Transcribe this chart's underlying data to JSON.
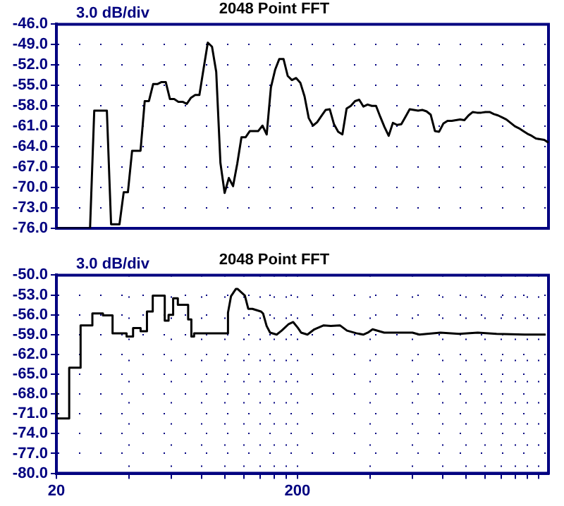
{
  "chart_data": [
    {
      "type": "line",
      "title": "2048 Point FFT",
      "annotations": [
        "3.0 dB/div"
      ],
      "grid": "y",
      "marker": "none",
      "tick_labels": "y",
      "categories": [
        null,
        null,
        null,
        null,
        null,
        null,
        null,
        null,
        null,
        null,
        null,
        null,
        null,
        null,
        null,
        null,
        null,
        null,
        null,
        null,
        null,
        null,
        null,
        null,
        null,
        null,
        null,
        null,
        null,
        null,
        null,
        null,
        null,
        null,
        null,
        null,
        null,
        null,
        null,
        null,
        null,
        null,
        null,
        null,
        null,
        null,
        null,
        null,
        null,
        null,
        null,
        null,
        null,
        null,
        null,
        null,
        null,
        null,
        null,
        null,
        null,
        null,
        null,
        null,
        null,
        null,
        null,
        null,
        null,
        null,
        null,
        null,
        null,
        null,
        null,
        null,
        null,
        null,
        null,
        null,
        null,
        null,
        null,
        null,
        null,
        null,
        null,
        null,
        null,
        null,
        null,
        null,
        null,
        null,
        null,
        null,
        null,
        null,
        null,
        null,
        null,
        null,
        null,
        null,
        null,
        null,
        null,
        null,
        null,
        null,
        null,
        null,
        null,
        null,
        null,
        null,
        null,
        null
      ],
      "ylim": [
        -76,
        -46
      ],
      "yticks": [
        {
          "value": -76,
          "label": "-76.0"
        },
        {
          "value": -73,
          "label": "-73.0"
        },
        {
          "value": -70,
          "label": "-70.0"
        },
        {
          "value": -67,
          "label": "-67.0"
        },
        {
          "value": -64,
          "label": "-64.0"
        },
        {
          "value": -61,
          "label": "-61.0"
        },
        {
          "value": -58,
          "label": "-58.0"
        },
        {
          "value": -55,
          "label": "-55.0"
        },
        {
          "value": -52,
          "label": "-52.0"
        },
        {
          "value": -49,
          "label": "-49.0"
        },
        {
          "value": -46,
          "label": "-46.0"
        }
      ],
      "series": [
        {
          "color": "#000000",
          "values": [
            -76,
            -76,
            -76,
            -76,
            -76,
            -76,
            -76,
            -76,
            -76,
            -58.7,
            -58.7,
            -58.7,
            -58.7,
            -75.4,
            -75.4,
            -75.4,
            -70.7,
            -70.7,
            -64.6,
            -64.6,
            -64.6,
            -57.3,
            -57.3,
            -54.8,
            -54.8,
            -54.5,
            -54.5,
            -57,
            -57,
            -57.4,
            -57.4,
            -57.7,
            -56.8,
            -56.4,
            -56.4,
            -52.5,
            -48.7,
            -49.3,
            -53,
            -66.4,
            -70.8,
            -68.6,
            -69.8,
            -66.5,
            -62.6,
            -62.6,
            -61.7,
            -61.7,
            -61.7,
            -60.9,
            -62.2,
            -55.3,
            -52.7,
            -51.1,
            -51.1,
            -53.6,
            -54.2,
            -53.9,
            -54.6,
            -56.6,
            -59.8,
            -60.9,
            -60.4,
            -59.5,
            -58.6,
            -58.5,
            -60.7,
            -61.8,
            -62.2,
            -58.4,
            -58,
            -57.3,
            -57.1,
            -58.1,
            -57.8,
            -58,
            -58,
            -59.6,
            -61.1,
            -62.4,
            -60.5,
            -60.8,
            -60.7,
            -59.6,
            -58.5,
            -58.6,
            -58.7,
            -58.6,
            -58.8,
            -59.3,
            -61.7,
            -61.8,
            -60.6,
            -60.2,
            -60.2,
            -60.1,
            -60,
            -60.1,
            -59.4,
            -58.9,
            -59,
            -59,
            -58.9,
            -58.9,
            -59.2,
            -59.4,
            -59.7,
            -60,
            -60.5,
            -61,
            -61.3,
            -61.7,
            -62.1,
            -62.4,
            -62.8,
            -62.9,
            -63,
            -63.4
          ]
        }
      ]
    },
    {
      "type": "line",
      "title": "2048 Point FFT",
      "annotations": [
        "3.0 dB/div"
      ],
      "log": "x",
      "grid": true,
      "marker": "none",
      "xlim": [
        20,
        2200
      ],
      "xticks": [
        {
          "value": 20,
          "label": "20"
        },
        {
          "value": 40,
          "label": null
        },
        {
          "value": 60,
          "label": null
        },
        {
          "value": 80,
          "label": null
        },
        {
          "value": 100,
          "label": null
        },
        {
          "value": 120,
          "label": null
        },
        {
          "value": 140,
          "label": null
        },
        {
          "value": 160,
          "label": null
        },
        {
          "value": 180,
          "label": null
        },
        {
          "value": 200,
          "label": "200"
        },
        {
          "value": 400,
          "label": null
        },
        {
          "value": 600,
          "label": null
        },
        {
          "value": 800,
          "label": null
        },
        {
          "value": 1000,
          "label": null
        },
        {
          "value": 1200,
          "label": null
        },
        {
          "value": 1400,
          "label": null
        },
        {
          "value": 1600,
          "label": null
        },
        {
          "value": 1800,
          "label": null
        },
        {
          "value": 2000,
          "label": null
        }
      ],
      "ylim": [
        -80,
        -50
      ],
      "yticks": [
        {
          "value": -80,
          "label": "-80.0"
        },
        {
          "value": -77,
          "label": "-77.0"
        },
        {
          "value": -74,
          "label": "-74.0"
        },
        {
          "value": -71,
          "label": "-71.0"
        },
        {
          "value": -68,
          "label": "-68.0"
        },
        {
          "value": -65,
          "label": "-65.0"
        },
        {
          "value": -62,
          "label": "-62.0"
        },
        {
          "value": -59,
          "label": "-59.0"
        },
        {
          "value": -56,
          "label": "-56.0"
        },
        {
          "value": -53,
          "label": "-53.0"
        },
        {
          "value": -50,
          "label": "-50.0"
        }
      ],
      "series": [
        {
          "color": "#000000",
          "x": [
            20,
            20,
            22.6,
            22.6,
            25.2,
            25.2,
            28.2,
            28.2,
            31.2,
            31.2,
            34.2,
            34.2,
            39.1,
            39.1,
            41.6,
            41.6,
            44.7,
            44.7,
            47.5,
            47.5,
            50.2,
            50.2,
            56.3,
            56.3,
            58.4,
            58.4,
            61,
            61,
            63.8,
            63.8,
            70.4,
            70.4,
            72.6,
            72.6,
            74.5,
            74.5,
            103,
            103,
            106,
            111,
            113,
            121,
            125,
            130,
            141,
            144,
            149,
            154,
            164,
            172,
            184,
            192,
            201,
            207,
            220,
            235,
            257,
            275,
            300,
            321,
            351,
            375,
            392,
            410,
            458,
            600,
            641,
            784,
            936,
            1120,
            1339,
            1750,
            2140
          ],
          "values": [
            -67.8,
            -71.7,
            -71.7,
            -64,
            -64,
            -57.6,
            -57.6,
            -55.8,
            -55.8,
            -56.1,
            -56.1,
            -58.8,
            -58.8,
            -59.3,
            -59.3,
            -58,
            -58,
            -58.5,
            -58.5,
            -55.5,
            -55.5,
            -53.1,
            -53.1,
            -56.9,
            -56.9,
            -56,
            -56,
            -53.5,
            -53.5,
            -54.5,
            -54.5,
            -56.7,
            -56.7,
            -59.3,
            -59.3,
            -58.8,
            -58.8,
            -55.7,
            -53.2,
            -52.1,
            -52.1,
            -53.1,
            -55.1,
            -55.1,
            -55.5,
            -55.8,
            -57.7,
            -58.7,
            -59,
            -58.4,
            -57.4,
            -57.1,
            -58,
            -58.7,
            -59,
            -58.2,
            -57.6,
            -57.7,
            -57.6,
            -58.4,
            -58.8,
            -59,
            -58.7,
            -58.2,
            -58.7,
            -58.7,
            -59,
            -58.7,
            -58.9,
            -58.7,
            -58.9,
            -59,
            -59
          ]
        }
      ]
    }
  ]
}
